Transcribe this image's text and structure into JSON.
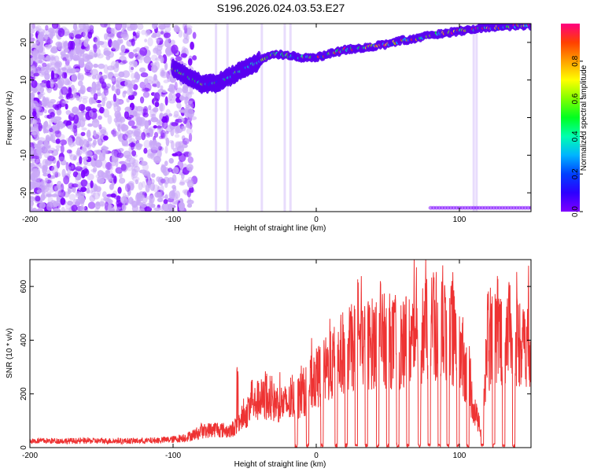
{
  "chart_data": [
    {
      "type": "heatmap",
      "title": "S196.2026.024.03.53.E27",
      "xlabel": "Height of straight line (km)",
      "ylabel": "Frequency (Hz)",
      "xlim": [
        -200,
        150
      ],
      "ylim": [
        -25,
        25
      ],
      "xticks": [
        -200,
        -100,
        0,
        100
      ],
      "yticks": [
        -20,
        -10,
        0,
        10,
        20
      ],
      "colorbar": {
        "label": "Normalized spectral amplitude",
        "range": [
          0,
          1
        ],
        "ticks": [
          "0.0",
          "0.2",
          "0.4",
          "0.6",
          "0.8"
        ],
        "colormap": [
          "#7f00ff",
          "#2d00ff",
          "#0040ff",
          "#00b4ff",
          "#00ffb0",
          "#00ff20",
          "#80ff00",
          "#ffff00",
          "#ffa000",
          "#ff4000",
          "#ff0080"
        ]
      },
      "noise_region_x": [
        -200,
        -100
      ],
      "ridge": [
        [
          -100,
          13
        ],
        [
          -90,
          11
        ],
        [
          -80,
          9
        ],
        [
          -70,
          9
        ],
        [
          -60,
          11
        ],
        [
          -50,
          13
        ],
        [
          -40,
          15
        ],
        [
          -30,
          17
        ],
        [
          -20,
          16.5
        ],
        [
          -10,
          16
        ],
        [
          0,
          16
        ],
        [
          10,
          17
        ],
        [
          20,
          18
        ],
        [
          30,
          18.5
        ],
        [
          40,
          19
        ],
        [
          50,
          19.5
        ],
        [
          60,
          20.5
        ],
        [
          70,
          21
        ],
        [
          80,
          22
        ],
        [
          90,
          22.5
        ],
        [
          100,
          23
        ],
        [
          110,
          23.5
        ],
        [
          120,
          24
        ],
        [
          130,
          24
        ],
        [
          140,
          24.5
        ],
        [
          150,
          24.5
        ]
      ]
    },
    {
      "type": "line",
      "title": "",
      "xlabel": "Height of straight line (km)",
      "ylabel": "SNR (10 * v/v)",
      "xlim": [
        -200,
        150
      ],
      "ylim": [
        0,
        700
      ],
      "xticks": [
        -200,
        -100,
        0,
        100
      ],
      "yticks": [
        0,
        200,
        400,
        600
      ],
      "series": [
        {
          "name": "SNR",
          "color": "#ee3333",
          "envelope": [
            [
              -200,
              25
            ],
            [
              -180,
              25
            ],
            [
              -160,
              25
            ],
            [
              -140,
              25
            ],
            [
              -120,
              25
            ],
            [
              -100,
              30
            ],
            [
              -90,
              40
            ],
            [
              -80,
              60
            ],
            [
              -70,
              70
            ],
            [
              -60,
              60
            ],
            [
              -50,
              120
            ],
            [
              -40,
              180
            ],
            [
              -30,
              170
            ],
            [
              -20,
              160
            ],
            [
              -10,
              200
            ],
            [
              0,
              260
            ],
            [
              10,
              300
            ],
            [
              20,
              360
            ],
            [
              30,
              380
            ],
            [
              40,
              390
            ],
            [
              50,
              400
            ],
            [
              60,
              380
            ],
            [
              70,
              420
            ],
            [
              80,
              440
            ],
            [
              90,
              430
            ],
            [
              100,
              400
            ],
            [
              110,
              150
            ],
            [
              115,
              60
            ],
            [
              120,
              380
            ],
            [
              130,
              420
            ],
            [
              140,
              400
            ],
            [
              150,
              400
            ]
          ],
          "peaks": [
            [
              -80,
              90
            ],
            [
              -55,
              300
            ],
            [
              -45,
              260
            ],
            [
              -35,
              290
            ],
            [
              0,
              340
            ],
            [
              30,
              450
            ],
            [
              50,
              530
            ],
            [
              60,
              500
            ],
            [
              70,
              590
            ],
            [
              82,
              640
            ],
            [
              88,
              680
            ],
            [
              95,
              700
            ],
            [
              100,
              550
            ],
            [
              120,
              590
            ],
            [
              135,
              620
            ],
            [
              145,
              530
            ]
          ],
          "dropout_x": [
            -14,
            -6,
            4,
            14,
            21,
            28,
            35,
            43,
            50,
            57,
            64,
            72,
            79,
            86,
            92,
            99,
            106,
            116,
            124,
            131,
            138
          ]
        }
      ]
    }
  ]
}
